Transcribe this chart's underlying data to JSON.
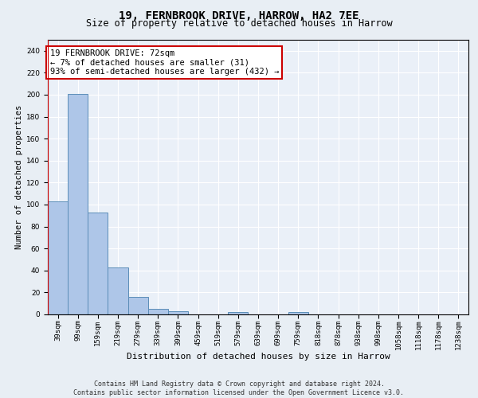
{
  "title": "19, FERNBROOK DRIVE, HARROW, HA2 7EE",
  "subtitle": "Size of property relative to detached houses in Harrow",
  "xlabel": "Distribution of detached houses by size in Harrow",
  "ylabel": "Number of detached properties",
  "bins": [
    "39sqm",
    "99sqm",
    "159sqm",
    "219sqm",
    "279sqm",
    "339sqm",
    "399sqm",
    "459sqm",
    "519sqm",
    "579sqm",
    "639sqm",
    "699sqm",
    "759sqm",
    "818sqm",
    "878sqm",
    "938sqm",
    "998sqm",
    "1058sqm",
    "1118sqm",
    "1178sqm",
    "1238sqm"
  ],
  "values": [
    103,
    201,
    93,
    43,
    16,
    5,
    3,
    0,
    0,
    2,
    0,
    0,
    2,
    0,
    0,
    0,
    0,
    0,
    0,
    0,
    0
  ],
  "bar_color": "#aec6e8",
  "bar_edge_color": "#5b8db8",
  "vline_color": "#cc0000",
  "annotation_line1": "19 FERNBROOK DRIVE: 72sqm",
  "annotation_line2": "← 7% of detached houses are smaller (31)",
  "annotation_line3": "93% of semi-detached houses are larger (432) →",
  "annotation_box_color": "#ffffff",
  "annotation_box_edgecolor": "#cc0000",
  "ylim": [
    0,
    250
  ],
  "yticks": [
    0,
    20,
    40,
    60,
    80,
    100,
    120,
    140,
    160,
    180,
    200,
    220,
    240
  ],
  "footer": "Contains HM Land Registry data © Crown copyright and database right 2024.\nContains public sector information licensed under the Open Government Licence v3.0.",
  "bg_color": "#e8eef4",
  "plot_bg_color": "#eaf0f8",
  "grid_color": "#ffffff",
  "title_fontsize": 10,
  "subtitle_fontsize": 8.5,
  "xlabel_fontsize": 8,
  "ylabel_fontsize": 7.5,
  "tick_fontsize": 6.5,
  "footer_fontsize": 6,
  "annotation_fontsize": 7.5
}
